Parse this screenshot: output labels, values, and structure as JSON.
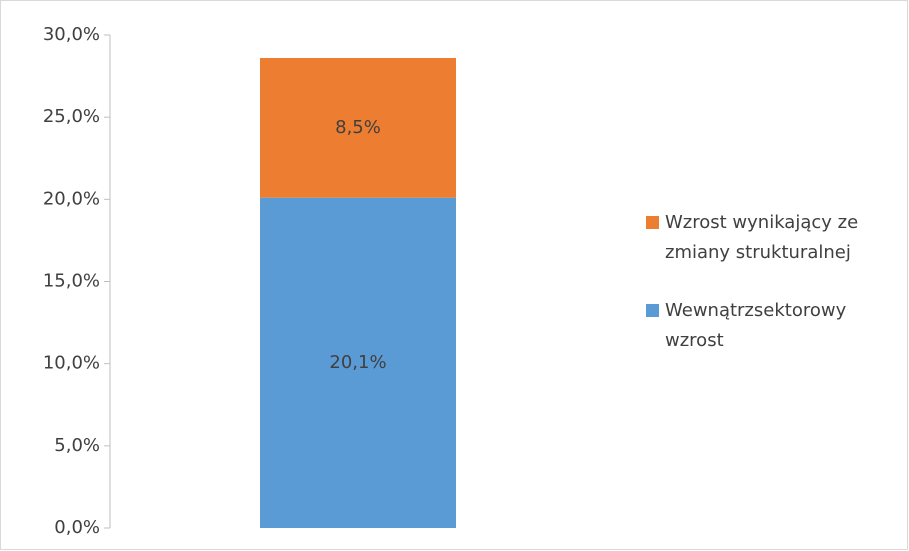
{
  "chart_data": {
    "type": "stacked_bar",
    "categories": [
      null
    ],
    "series": [
      {
        "name": "Wewnątrzsektorowy wzrost",
        "color": "#5b9bd5",
        "values": [
          20.1
        ],
        "value_labels": [
          "20,1%"
        ]
      },
      {
        "name": "Wzrost wynikający ze zmiany strukturalnej",
        "color": "#ed7d31",
        "values": [
          8.5
        ],
        "value_labels": [
          "8,5%"
        ]
      }
    ],
    "ylim": [
      0,
      30
    ],
    "yticks": [
      {
        "value": 0,
        "label": "0,0%"
      },
      {
        "value": 5,
        "label": "5,0%"
      },
      {
        "value": 10,
        "label": "10,0%"
      },
      {
        "value": 15,
        "label": "15,0%"
      },
      {
        "value": 20,
        "label": "20,0%"
      },
      {
        "value": 25,
        "label": "25,0%"
      },
      {
        "value": 30,
        "label": "30,0%"
      }
    ],
    "grid": false,
    "legend": "right"
  }
}
